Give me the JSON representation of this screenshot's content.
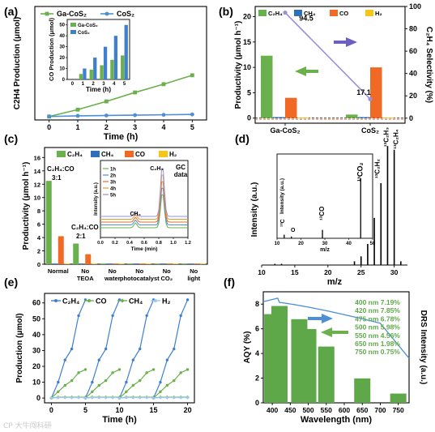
{
  "chart_data": [
    {
      "panel": "(a)",
      "type": "line",
      "xlabel": "Time (h)",
      "ylabel": "C2H4 Production (μmol)",
      "x": [
        0,
        1,
        2,
        3,
        4,
        5
      ],
      "xlim": [
        -0.5,
        5.5
      ],
      "xticks": [
        "0",
        "1",
        "2",
        "3",
        "4",
        "5"
      ],
      "ylim": [
        -5,
        160
      ],
      "series": [
        {
          "name": "Ga-CoS2",
          "color": "#6ab04c",
          "values": [
            0,
            10,
            22,
            35,
            47,
            60
          ]
        },
        {
          "name": "CoS2",
          "color": "#4c8fd6",
          "values": [
            0,
            1,
            1.5,
            2,
            2.5,
            3
          ]
        }
      ],
      "legend": {
        "labels": [
          "Ga-CoS₂",
          "CoS₂"
        ],
        "position": "top-left"
      },
      "inset": {
        "type": "bar",
        "xlabel": "Time (h)",
        "ylabel": "CO Production (μmol)",
        "categories": [
          "0",
          "1",
          "2",
          "3",
          "4",
          "5"
        ],
        "yticks": [
          "0",
          "10",
          "20",
          "30",
          "40",
          "50"
        ],
        "ylim": [
          0,
          55
        ],
        "series": [
          {
            "name": "Ga-CoS2",
            "color": "#6ab04c",
            "values": [
              0,
              5,
              9,
              13,
              18,
              22
            ]
          },
          {
            "name": "CoS2",
            "color": "#3f7fce",
            "values": [
              0,
              10,
              20,
              30,
              40,
              50
            ]
          }
        ],
        "legend": [
          "Ga-CoS₂",
          "CoS₂"
        ]
      }
    },
    {
      "panel": "(b)",
      "type": "bar",
      "ylabel_left": "Productivity (μmol h⁻¹)",
      "ylabel_right": "C₂H₄ Selectivity (%)",
      "categories": [
        "Ga-CoS₂",
        "CoS₂"
      ],
      "ylim": [
        -1,
        22
      ],
      "yticks": [
        "0",
        "5",
        "10",
        "15",
        "20"
      ],
      "y2lim": [
        -4.5,
        100
      ],
      "y2ticks": [
        "0",
        "20",
        "40",
        "60",
        "80",
        "100"
      ],
      "series": [
        {
          "name": "C2H4",
          "color": "#6ab04c",
          "values": [
            12.3,
            0.7
          ]
        },
        {
          "name": "CH4",
          "color": "#2f6fba",
          "values": [
            0.2,
            0.2
          ]
        },
        {
          "name": "CO",
          "color": "#f06a25",
          "values": [
            4.0,
            10.0
          ]
        },
        {
          "name": "H2",
          "color": "#f5c518",
          "values": [
            0.1,
            0.1
          ]
        }
      ],
      "legend": [
        "C₂H₄",
        "CH₄",
        "CO",
        "H₂"
      ],
      "selectivity": {
        "values": [
          94.5,
          17.1
        ],
        "labels": [
          "94.5",
          "17.1"
        ],
        "color": "#9b8fd8"
      }
    },
    {
      "panel": "(c)",
      "type": "bar",
      "ylabel": "Productivity (μmol h⁻¹)",
      "ylim": [
        0,
        17.5
      ],
      "yticks": [
        "0",
        "2",
        "4",
        "6",
        "8",
        "10",
        "12",
        "14",
        "16"
      ],
      "categories": [
        "Normal",
        "No TEOA",
        "No water",
        "No photocatalyst",
        "No CO₂",
        "No light"
      ],
      "category_lines": [
        [
          "Normal"
        ],
        [
          "No",
          "TEOA"
        ],
        [
          "No",
          "water"
        ],
        [
          "No",
          "photocatalyst"
        ],
        [
          "No",
          "CO₂"
        ],
        [
          "No",
          "light"
        ]
      ],
      "series": [
        {
          "name": "C2H4",
          "color": "#6ab04c",
          "values": [
            12.5,
            3.1,
            0.1,
            0.1,
            0.1,
            0.1
          ]
        },
        {
          "name": "CH4",
          "color": "#2f6fba",
          "values": [
            0.1,
            0.1,
            0.1,
            0.1,
            0.1,
            0.1
          ]
        },
        {
          "name": "CO",
          "color": "#f06a25",
          "values": [
            4.2,
            1.5,
            0.1,
            0.1,
            0.1,
            0.1
          ]
        },
        {
          "name": "H2",
          "color": "#f5c518",
          "values": [
            0.1,
            0.1,
            0.1,
            0.1,
            0.1,
            0.1
          ]
        }
      ],
      "legend": [
        "C₂H₄",
        "CH₄",
        "CO",
        "H₂"
      ],
      "annotations": [
        "C₂H₄:CO",
        "3:1",
        "C₂H₄:CO",
        "2:1"
      ],
      "inset": {
        "type": "line",
        "xlabel": "Time (min)",
        "ylabel": "Intensity (a.u.)",
        "xlim": [
          0,
          1.2
        ],
        "xticks": [
          "0.0",
          "0.2",
          "0.4",
          "0.6",
          "0.8",
          "1.0",
          "1.2"
        ],
        "series": [
          {
            "name": "1h",
            "color": "#6ab04c"
          },
          {
            "name": "2h",
            "color": "#4c8fd6"
          },
          {
            "name": "3h",
            "color": "#f06a25"
          },
          {
            "name": "4h",
            "color": "#e0a030"
          },
          {
            "name": "5h",
            "color": "#9b8fd8"
          }
        ],
        "peaks": [
          {
            "label": "C₂H₄",
            "x": 0.85
          },
          {
            "label": "CH₄",
            "x": 0.48
          }
        ],
        "annotation": [
          "GC",
          "data"
        ]
      }
    },
    {
      "panel": "(d)",
      "type": "bar",
      "xlabel": "m/z",
      "ylabel": "Intensity (a.u.)",
      "xlim": [
        10,
        32
      ],
      "xticks": [
        "10",
        "15",
        "20",
        "25",
        "30"
      ],
      "sticks": [
        {
          "x": 12,
          "h": 0.01
        },
        {
          "x": 13,
          "h": 0.01
        },
        {
          "x": 24,
          "h": 0.03
        },
        {
          "x": 25,
          "h": 0.07
        },
        {
          "x": 26,
          "h": 0.17
        },
        {
          "x": 27,
          "h": 0.38
        },
        {
          "x": 28,
          "h": 0.66
        },
        {
          "x": 29,
          "h": 0.96
        },
        {
          "x": 30,
          "h": 0.93
        },
        {
          "x": 31,
          "h": 0.03
        }
      ],
      "labels": [
        "¹³C₂H₂",
        "¹³C₂H₃",
        "¹³C₂H₄"
      ],
      "inset": {
        "xlabel": "m/z",
        "ylabel": "Intensity (a.u.)",
        "xlim": [
          10,
          50
        ],
        "xticks": [
          "10",
          "20",
          "30",
          "40",
          "50"
        ],
        "sticks": [
          {
            "x": 13,
            "h": 0.06
          },
          {
            "x": 16,
            "h": 0.03
          },
          {
            "x": 29,
            "h": 0.14
          },
          {
            "x": 45,
            "h": 1.0
          }
        ],
        "labels": [
          "¹³C",
          "O",
          "¹³CO",
          "¹³CO₂"
        ]
      }
    },
    {
      "panel": "(e)",
      "type": "line",
      "xlabel": "Time (h)",
      "ylabel": "Production (μmol)",
      "xlim": [
        -1,
        21
      ],
      "xticks": [
        "0",
        "5",
        "10",
        "15",
        "20"
      ],
      "ylim": [
        -3,
        66
      ],
      "yticks": [
        "0",
        "10",
        "20",
        "30",
        "40",
        "50",
        "60"
      ],
      "legend": [
        "C₂H₄",
        "CO",
        "CH₄",
        "H₂"
      ],
      "cycles": [
        0,
        5,
        10,
        15
      ],
      "series": [
        {
          "name": "C2H4",
          "color": "#3f7fce",
          "values": [
            0,
            10,
            24,
            31,
            52,
            62
          ]
        },
        {
          "name": "CO",
          "color": "#6ab04c",
          "values": [
            0,
            4,
            8,
            11,
            16,
            18
          ]
        },
        {
          "name": "CH4",
          "color": "#6ab04c",
          "values": [
            0,
            0.5,
            0.5,
            0.5,
            0.5,
            0.5
          ]
        },
        {
          "name": "H2",
          "color": "#9dc9ee",
          "values": [
            0,
            0.3,
            0.3,
            0.3,
            0.3,
            0.3
          ]
        }
      ]
    },
    {
      "panel": "(f)",
      "type": "bar",
      "xlabel": "Wavelength (nm)",
      "ylabel_left": "AQY (%)",
      "ylabel_right": "DRS Intensity (a.u.)",
      "xlim": [
        375,
        780
      ],
      "xticks": [
        "400",
        "450",
        "500",
        "550",
        "600",
        "650",
        "700",
        "750"
      ],
      "ylim": [
        0,
        9
      ],
      "yticks": [
        "0",
        "2",
        "4",
        "6",
        "8"
      ],
      "categories": [
        "400",
        "420",
        "475",
        "500",
        "550",
        "650",
        "750"
      ],
      "values": [
        7.19,
        7.85,
        6.78,
        5.98,
        4.56,
        1.98,
        0.75
      ],
      "table": [
        "400 nm  7.19%",
        "420 nm  7.85%",
        "475 nm  6.78%",
        "500 nm  5.98%",
        "550 nm  4.56%",
        "650 nm  1.98%",
        "750 nm  0.75%"
      ],
      "bar_color": "#5fa84a",
      "drs_color": "#4c8fd6"
    }
  ],
  "panel_labels": [
    "(a)",
    "(b)",
    "(c)",
    "(d)",
    "(e)",
    "(f)"
  ],
  "watermark": "CP 大牛闯科研"
}
